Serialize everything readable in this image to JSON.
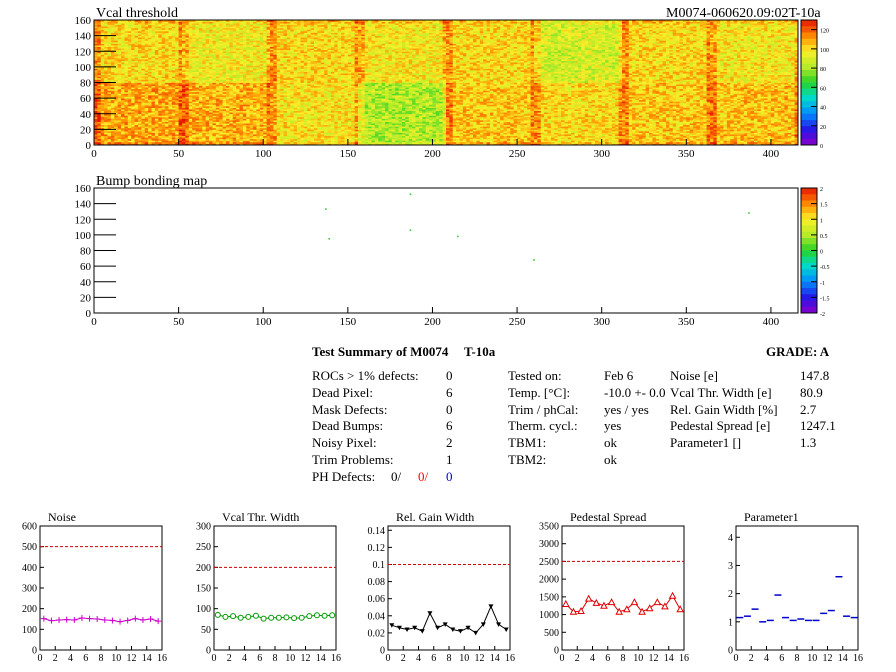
{
  "header": {
    "map_title": "Vcal threshold",
    "module_id": "M0074-060620.09:02T-10a",
    "bump_title": "Bump bonding map"
  },
  "colors": {
    "line_red": "#cc0000",
    "noise_series": "#cc00cc",
    "vcal_series": "#009900",
    "gain_series": "#000000",
    "pedestal_series": "#dd0000",
    "param_series": "#0000cc",
    "ph_red": "#ff0000",
    "ph_blue": "#0000cc"
  },
  "summary": {
    "title": "Test Summary of M0074",
    "temp_tag": "T-10a",
    "grade": "GRADE:  A",
    "col1": [
      {
        "label": "ROCs > 1% defects:",
        "value": "0"
      },
      {
        "label": "Dead Pixel:",
        "value": "6"
      },
      {
        "label": "Mask Defects:",
        "value": "0"
      },
      {
        "label": "Dead Bumps:",
        "value": "6"
      },
      {
        "label": "Noisy Pixel:",
        "value": "2"
      },
      {
        "label": "Trim Problems:",
        "value": "1"
      }
    ],
    "ph_defects": {
      "label": "PH Defects:",
      "v1": "0/",
      "v2": "0/",
      "v3": "0"
    },
    "col2": [
      {
        "label": "Tested on:",
        "value": "Feb 6"
      },
      {
        "label": "Temp. [°C]:",
        "value": "-10.0 +- 0.0"
      },
      {
        "label": "Trim / phCal:",
        "value": "yes / yes"
      },
      {
        "label": "Therm. cycl.:",
        "value": "yes"
      },
      {
        "label": "TBM1:",
        "value": "ok"
      },
      {
        "label": "TBM2:",
        "value": "ok"
      }
    ],
    "col3": [
      {
        "label": "Noise [e]",
        "value": "147.8"
      },
      {
        "label": "Vcal Thr. Width [e]",
        "value": "80.9"
      },
      {
        "label": "Rel. Gain Width [%]",
        "value": "2.7"
      },
      {
        "label": "Pedestal Spread [e]",
        "value": "1247.1"
      },
      {
        "label": "Parameter1 []",
        "value": "1.3"
      }
    ]
  },
  "chart_data": [
    {
      "type": "heatmap",
      "title": "Vcal threshold",
      "x_ticks": [
        "0",
        "50",
        "100",
        "150",
        "200",
        "250",
        "300",
        "350",
        "400"
      ],
      "y_ticks": [
        "0",
        "20",
        "40",
        "60",
        "80",
        "100",
        "120",
        "140",
        "160"
      ],
      "xlim": [
        0,
        416
      ],
      "ylim": [
        0,
        160
      ],
      "colorbar_ticks": [
        "0",
        "20",
        "40",
        "60",
        "80",
        "100",
        "120"
      ],
      "zlim": [
        0,
        130
      ],
      "roc_mean_top": [
        100,
        95,
        100,
        97,
        100,
        89,
        100,
        97
      ],
      "roc_mean_bottom": [
        108,
        107,
        98,
        82,
        103,
        100,
        103,
        104
      ]
    },
    {
      "type": "scatter",
      "title": "Bump bonding map",
      "x_ticks": [
        "0",
        "50",
        "100",
        "150",
        "200",
        "250",
        "300",
        "350",
        "400"
      ],
      "y_ticks": [
        "0",
        "20",
        "40",
        "60",
        "80",
        "100",
        "120",
        "140",
        "160"
      ],
      "xlim": [
        0,
        416
      ],
      "ylim": [
        0,
        160
      ],
      "colorbar_ticks": [
        "2",
        "1.5",
        "1",
        "0.5",
        "0",
        "-0.5",
        "-1",
        "-1.5",
        "-2"
      ],
      "zlim": [
        -2,
        2
      ],
      "points": [
        [
          187,
          152
        ],
        [
          137,
          133
        ],
        [
          187,
          106
        ],
        [
          215,
          98
        ],
        [
          139,
          95
        ],
        [
          387,
          128
        ],
        [
          260,
          68
        ]
      ]
    },
    {
      "type": "scatter",
      "title": "Noise",
      "x_ticks": [
        "0",
        "2",
        "4",
        "6",
        "8",
        "10",
        "12",
        "14",
        "16"
      ],
      "y_ticks": [
        "0",
        "100",
        "200",
        "300",
        "400",
        "500",
        "600"
      ],
      "xlim": [
        0,
        16
      ],
      "ylim": [
        0,
        600
      ],
      "reference_line": 500,
      "values": [
        152,
        142,
        145,
        147,
        145,
        155,
        152,
        150,
        145,
        143,
        137,
        143,
        152,
        145,
        150,
        140
      ]
    },
    {
      "type": "line",
      "title": "Vcal Thr. Width",
      "x_ticks": [
        "0",
        "2",
        "4",
        "6",
        "8",
        "10",
        "12",
        "14",
        "16"
      ],
      "y_ticks": [
        "0",
        "50",
        "100",
        "150",
        "200",
        "250",
        "300"
      ],
      "xlim": [
        0,
        16
      ],
      "ylim": [
        0,
        300
      ],
      "reference_line": 200,
      "values": [
        85,
        80,
        82,
        78,
        80,
        83,
        76,
        78,
        78,
        79,
        77,
        78,
        82,
        84,
        83,
        84
      ]
    },
    {
      "type": "line",
      "title": "Rel. Gain Width",
      "x_ticks": [
        "0",
        "2",
        "4",
        "6",
        "8",
        "10",
        "12",
        "14",
        "16"
      ],
      "y_ticks": [
        "0",
        "0.02",
        "0.04",
        "0.06",
        "0.08",
        "0.1",
        "0.12",
        "0.14"
      ],
      "xlim": [
        0,
        16
      ],
      "ylim": [
        0,
        0.145
      ],
      "reference_line": 0.1,
      "values": [
        0.029,
        0.026,
        0.024,
        0.026,
        0.022,
        0.043,
        0.026,
        0.03,
        0.024,
        0.022,
        0.026,
        0.02,
        0.03,
        0.051,
        0.03,
        0.024
      ]
    },
    {
      "type": "line",
      "title": "Pedestal Spread",
      "x_ticks": [
        "0",
        "2",
        "4",
        "6",
        "8",
        "10",
        "12",
        "14",
        "16"
      ],
      "y_ticks": [
        "0",
        "500",
        "1000",
        "1500",
        "2000",
        "2500",
        "3000",
        "3500"
      ],
      "xlim": [
        0,
        16
      ],
      "ylim": [
        0,
        3500
      ],
      "reference_line": 2500,
      "values": [
        1300,
        1080,
        1100,
        1450,
        1330,
        1250,
        1350,
        1080,
        1150,
        1350,
        1080,
        1180,
        1350,
        1230,
        1530,
        1150
      ]
    },
    {
      "type": "scatter",
      "title": "Parameter1",
      "x_ticks": [
        "0",
        "2",
        "4",
        "6",
        "8",
        "10",
        "12",
        "14",
        "16"
      ],
      "y_ticks": [
        "0",
        "1",
        "2",
        "3",
        "4"
      ],
      "xlim": [
        0,
        16
      ],
      "ylim": [
        0,
        4.4
      ],
      "values": [
        1.15,
        1.2,
        1.45,
        1.0,
        1.05,
        1.95,
        1.15,
        1.05,
        1.1,
        1.05,
        1.05,
        1.3,
        1.4,
        2.6,
        1.2,
        1.15
      ]
    }
  ]
}
